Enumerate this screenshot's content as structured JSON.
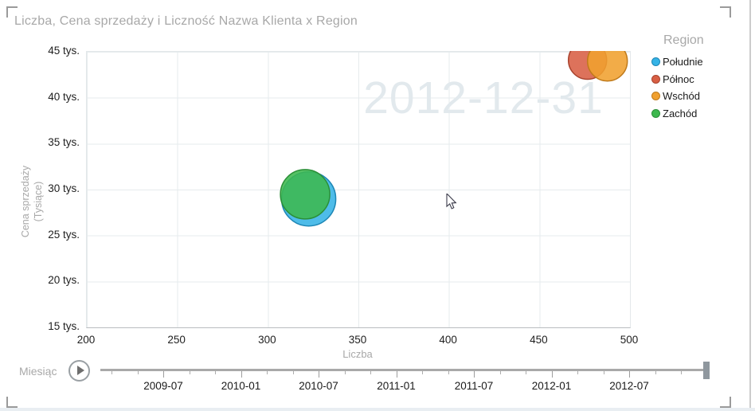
{
  "title": "Liczba, Cena sprzedaży i Liczność Nazwa Klienta x Region",
  "watermark_date": "2012-12-31",
  "legend": {
    "title": "Region",
    "items": [
      {
        "label": "Południe",
        "color": "#35b3e6",
        "stroke": "#1d86b5"
      },
      {
        "label": "Północ",
        "color": "#d85f44",
        "stroke": "#a8432e"
      },
      {
        "label": "Wschód",
        "color": "#f0a02f",
        "stroke": "#bf7a1b"
      },
      {
        "label": "Zachód",
        "color": "#3db84e",
        "stroke": "#2b8f38"
      }
    ]
  },
  "x_axis": {
    "title": "Liczba",
    "ticks": [
      "200",
      "250",
      "300",
      "350",
      "400",
      "450",
      "500"
    ]
  },
  "y_axis": {
    "title_line1": "Cena sprzedaży",
    "title_line2": "(Tysiące)",
    "ticks": [
      "45 tys.",
      "40 tys.",
      "35 tys.",
      "30 tys.",
      "25 tys.",
      "20 tys.",
      "15 tys."
    ]
  },
  "chart_data": {
    "type": "scatter",
    "title": "Liczba, Cena sprzedaży i Liczność Nazwa Klienta x Region",
    "xlabel": "Liczba",
    "ylabel": "Cena sprzedaży (Tysiące)",
    "xlim": [
      200,
      500
    ],
    "ylim_tys": [
      15,
      45
    ],
    "grid": true,
    "legend_position": "right",
    "size_field": "Liczność Nazwa Klienta",
    "current_frame": "2012-12-31",
    "series": [
      {
        "name": "Południe",
        "color": "#35b3e6",
        "stroke": "#1d86b5",
        "x": 323,
        "y_tys": 28.9,
        "size_px_radius": 34
      },
      {
        "name": "Północ",
        "color": "#d85f44",
        "stroke": "#a8432e",
        "x": 477,
        "y_tys": 44.0,
        "size_px_radius": 24
      },
      {
        "name": "Wschód",
        "color": "#f0a02f",
        "stroke": "#bf7a1b",
        "x": 488,
        "y_tys": 43.9,
        "size_px_radius": 25
      },
      {
        "name": "Zachód",
        "color": "#3db84e",
        "stroke": "#2b8f38",
        "x": 321,
        "y_tys": 29.4,
        "size_px_radius": 31
      }
    ]
  },
  "play_axis": {
    "label": "Miesiąc",
    "play_icon": "play-circle-icon",
    "tick_labels": [
      "2009-07",
      "2010-01",
      "2010-07",
      "2011-01",
      "2011-07",
      "2012-01",
      "2012-07"
    ],
    "slider_position": "end"
  }
}
